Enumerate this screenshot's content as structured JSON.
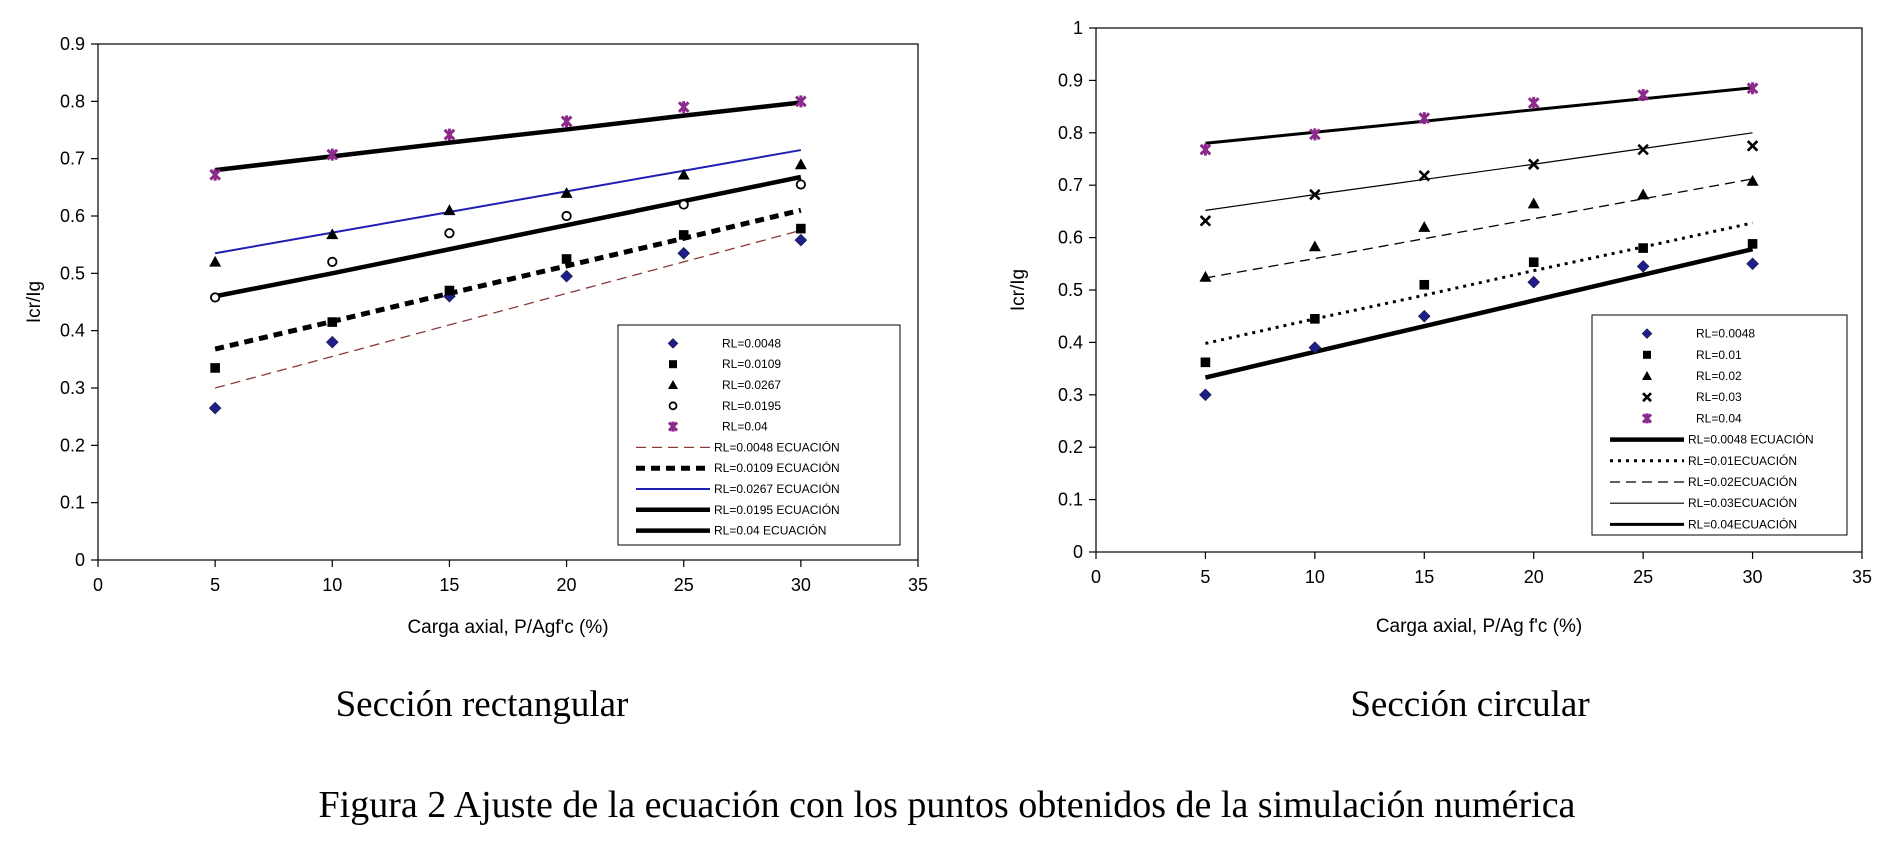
{
  "figure_caption": "Figura 2 Ajuste de la ecuación con los puntos obtenidos de la simulación numérica",
  "chart_data": [
    {
      "type": "scatter",
      "subtitle": "Sección rectangular",
      "xlabel": "Carga axial, P/Agf'c (%)",
      "ylabel": "Icr/Ig",
      "xlim": [
        0,
        35
      ],
      "ylim": [
        0,
        0.9
      ],
      "xticks": [
        0,
        5,
        10,
        15,
        20,
        25,
        30,
        35
      ],
      "yticks": [
        0,
        0.1,
        0.2,
        0.3,
        0.4,
        0.5,
        0.6,
        0.7,
        0.8,
        0.9
      ],
      "legend_position": "bottom-right",
      "grid": false,
      "x": [
        5,
        10,
        15,
        20,
        25,
        30
      ],
      "series": [
        {
          "name": "RL=0.0048",
          "marker": "diamond",
          "color": "#1f1f8a",
          "values": [
            0.265,
            0.38,
            0.46,
            0.495,
            0.535,
            0.558
          ]
        },
        {
          "name": "RL=0.0109",
          "marker": "square",
          "color": "#000000",
          "values": [
            0.335,
            0.415,
            0.47,
            0.525,
            0.567,
            0.578
          ]
        },
        {
          "name": "RL=0.0267",
          "marker": "triangle",
          "color": "#000000",
          "values": [
            0.52,
            0.568,
            0.61,
            0.64,
            0.672,
            0.69
          ]
        },
        {
          "name": "RL=0.0195",
          "marker": "circle",
          "color": "#000000",
          "values": [
            0.458,
            0.52,
            0.57,
            0.6,
            0.62,
            0.655
          ]
        },
        {
          "name": "RL=0.04",
          "marker": "star",
          "color": "#8b2a8b",
          "values": [
            0.672,
            0.707,
            0.742,
            0.765,
            0.79,
            0.8
          ]
        }
      ],
      "lines": [
        {
          "name": "RL=0.0048 ECUACIÓN",
          "style": "dash-thin",
          "color": "#8b3a3a",
          "values": [
            0.3,
            0.355,
            0.41,
            0.465,
            0.52,
            0.575
          ]
        },
        {
          "name": "RL=0.0109 ECUACIÓN",
          "style": "dash-thick",
          "color": "#000000",
          "values": [
            0.368,
            0.416,
            0.465,
            0.513,
            0.561,
            0.61
          ]
        },
        {
          "name": "RL=0.0267 ECUACIÓN",
          "style": "solid-blue",
          "color": "#1f1fb4",
          "values": [
            0.535,
            0.571,
            0.607,
            0.643,
            0.679,
            0.715
          ]
        },
        {
          "name": "RL=0.0195 ECUACIÓN",
          "style": "solid-thick",
          "color": "#000000",
          "values": [
            0.46,
            0.5,
            0.542,
            0.584,
            0.626,
            0.668
          ]
        },
        {
          "name": "RL=0.04 ECUACIÓN",
          "style": "solid-thick",
          "color": "#000000",
          "values": [
            0.68,
            0.704,
            0.728,
            0.751,
            0.775,
            0.798
          ]
        }
      ]
    },
    {
      "type": "scatter",
      "subtitle": "Sección circular",
      "xlabel": "Carga axial, P/Ag f'c (%)",
      "ylabel": "Icr/Ig",
      "xlim": [
        0,
        35
      ],
      "ylim": [
        0,
        1
      ],
      "xticks": [
        0,
        5,
        10,
        15,
        20,
        25,
        30,
        35
      ],
      "yticks": [
        0,
        0.1,
        0.2,
        0.3,
        0.4,
        0.5,
        0.6,
        0.7,
        0.8,
        0.9,
        1
      ],
      "legend_position": "bottom-right",
      "grid": false,
      "x": [
        5,
        10,
        15,
        20,
        25,
        30
      ],
      "series": [
        {
          "name": "RL=0.0048",
          "marker": "diamond",
          "color": "#1f1f8a",
          "values": [
            0.3,
            0.39,
            0.45,
            0.515,
            0.545,
            0.55
          ]
        },
        {
          "name": "RL=0.01",
          "marker": "square",
          "color": "#000000",
          "values": [
            0.362,
            0.445,
            0.51,
            0.553,
            0.58,
            0.588
          ]
        },
        {
          "name": "RL=0.02",
          "marker": "triangle",
          "color": "#000000",
          "values": [
            0.525,
            0.583,
            0.62,
            0.665,
            0.682,
            0.708
          ]
        },
        {
          "name": "RL=0.03",
          "marker": "x",
          "color": "#000000",
          "values": [
            0.632,
            0.682,
            0.718,
            0.74,
            0.768,
            0.775
          ]
        },
        {
          "name": "RL=0.04",
          "marker": "star",
          "color": "#8b2a8b",
          "values": [
            0.768,
            0.797,
            0.828,
            0.857,
            0.872,
            0.885
          ]
        }
      ],
      "lines": [
        {
          "name": "RL=0.0048 ECUACIÓN",
          "style": "solid-thick",
          "color": "#000000",
          "values": [
            0.333,
            0.382,
            0.431,
            0.48,
            0.529,
            0.578
          ]
        },
        {
          "name": "RL=0.01ECUACIÓN",
          "style": "dotted",
          "color": "#000000",
          "values": [
            0.398,
            0.445,
            0.49,
            0.537,
            0.582,
            0.628
          ]
        },
        {
          "name": "RL=0.02ECUACIÓN",
          "style": "dash-thin",
          "color": "#000000",
          "values": [
            0.523,
            0.56,
            0.598,
            0.636,
            0.674,
            0.712
          ]
        },
        {
          "name": "RL=0.03ECUACIÓN",
          "style": "solid-thin",
          "color": "#000000",
          "values": [
            0.652,
            0.682,
            0.711,
            0.74,
            0.77,
            0.8
          ]
        },
        {
          "name": "RL=0.04ECUACIÓN",
          "style": "solid-medium",
          "color": "#000000",
          "values": [
            0.78,
            0.801,
            0.822,
            0.844,
            0.865,
            0.886
          ]
        }
      ]
    }
  ]
}
